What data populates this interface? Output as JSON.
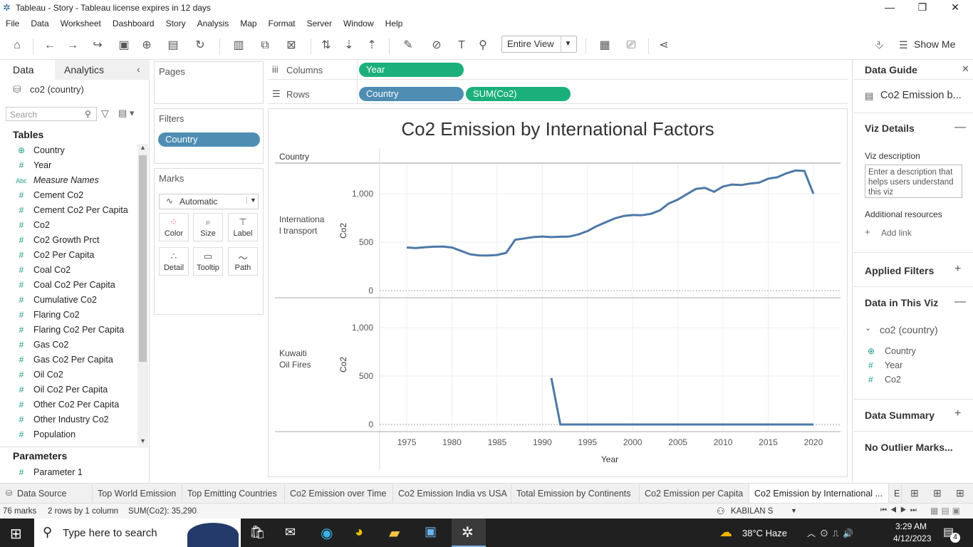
{
  "window": {
    "title": "Tableau - Story - Tableau license expires in 12 days"
  },
  "menu": [
    "File",
    "Data",
    "Worksheet",
    "Dashboard",
    "Story",
    "Analysis",
    "Map",
    "Format",
    "Server",
    "Window",
    "Help"
  ],
  "toolbar": {
    "view_mode": "Entire View",
    "show_me": "Show Me"
  },
  "left": {
    "tab_data": "Data",
    "tab_analytics": "Analytics",
    "datasource": "co2 (country)",
    "search_placeholder": "Search",
    "tables_heading": "Tables",
    "fields": [
      {
        "icon": "globe",
        "label": "Country"
      },
      {
        "icon": "#",
        "label": "Year"
      },
      {
        "icon": "Abc",
        "label": "Measure Names"
      },
      {
        "icon": "#",
        "label": "Cement Co2"
      },
      {
        "icon": "#",
        "label": "Cement Co2 Per Capita"
      },
      {
        "icon": "#",
        "label": "Co2"
      },
      {
        "icon": "#",
        "label": "Co2 Growth Prct"
      },
      {
        "icon": "#",
        "label": "Co2 Per Capita"
      },
      {
        "icon": "#",
        "label": "Coal Co2"
      },
      {
        "icon": "#",
        "label": "Coal Co2 Per Capita"
      },
      {
        "icon": "#",
        "label": "Cumulative Co2"
      },
      {
        "icon": "#",
        "label": "Flaring Co2"
      },
      {
        "icon": "#",
        "label": "Flaring Co2 Per Capita"
      },
      {
        "icon": "#",
        "label": "Gas Co2"
      },
      {
        "icon": "#",
        "label": "Gas Co2 Per Capita"
      },
      {
        "icon": "#",
        "label": "Oil Co2"
      },
      {
        "icon": "#",
        "label": "Oil Co2 Per Capita"
      },
      {
        "icon": "#",
        "label": "Other Co2 Per Capita"
      },
      {
        "icon": "#",
        "label": "Other Industry Co2"
      },
      {
        "icon": "#",
        "label": "Population"
      }
    ],
    "parameters_heading": "Parameters",
    "parameter": "Parameter 1"
  },
  "cards": {
    "pages": "Pages",
    "filters": "Filters",
    "filter_pill": "Country",
    "marks": "Marks",
    "mark_type": "Automatic",
    "mark_buttons": [
      "Color",
      "Size",
      "Label",
      "Detail",
      "Tooltip",
      "Path"
    ]
  },
  "shelves": {
    "columns_label": "Columns",
    "rows_label": "Rows",
    "columns_pill": "Year",
    "rows_pill1": "Country",
    "rows_pill2": "SUM(Co2)"
  },
  "viz": {
    "title": "Co2 Emission by International Factors",
    "row_header": "Country",
    "panel1_label": "Internationa l transport",
    "panel2_label": "Kuwaiti Oil Fires",
    "yaxis": "Co2",
    "xaxis": "Year"
  },
  "chart_data": {
    "type": "line",
    "title": "Co2 Emission by International Factors",
    "xlabel": "Year",
    "ylabel": "Co2",
    "x_ticks": [
      1975,
      1980,
      1985,
      1990,
      1995,
      2000,
      2005,
      2010,
      2015,
      2020
    ],
    "y_ticks": [
      0,
      500,
      1000
    ],
    "ylim": [
      0,
      1250
    ],
    "xlim": [
      1972,
      2023
    ],
    "series": [
      {
        "name": "Internationa l transport",
        "x": [
          1975,
          1976,
          1977,
          1978,
          1979,
          1980,
          1981,
          1982,
          1983,
          1984,
          1985,
          1986,
          1987,
          1988,
          1989,
          1990,
          1991,
          1992,
          1993,
          1994,
          1995,
          1996,
          1997,
          1998,
          1999,
          2000,
          2001,
          2002,
          2003,
          2004,
          2005,
          2006,
          2007,
          2008,
          2009,
          2010,
          2011,
          2012,
          2013,
          2014,
          2015,
          2016,
          2017,
          2018,
          2019,
          2020
        ],
        "y": [
          445,
          440,
          448,
          453,
          455,
          445,
          410,
          375,
          363,
          362,
          368,
          390,
          525,
          538,
          552,
          558,
          552,
          556,
          558,
          580,
          615,
          665,
          705,
          745,
          770,
          780,
          778,
          792,
          828,
          900,
          940,
          995,
          1050,
          1060,
          1020,
          1075,
          1095,
          1090,
          1105,
          1115,
          1155,
          1170,
          1210,
          1240,
          1235,
          1000
        ]
      },
      {
        "name": "Kuwaiti Oil Fires",
        "x": [
          1991,
          1992,
          1993,
          1995,
          2000,
          2005,
          2010,
          2015,
          2020
        ],
        "y": [
          480,
          0,
          0,
          0,
          0,
          0,
          0,
          0,
          0
        ]
      }
    ]
  },
  "right": {
    "title": "Data Guide",
    "viz_name": "Co2 Emission b...",
    "viz_details": "Viz Details",
    "viz_desc_label": "Viz description",
    "viz_desc_placeholder": "Enter a description that helps users understand this viz",
    "additional": "Additional resources",
    "add_link": "Add link",
    "applied_filters": "Applied Filters",
    "data_in_viz": "Data in This Viz",
    "ds": "co2 (country)",
    "fields": [
      "Country",
      "Year",
      "Co2"
    ],
    "data_summary": "Data Summary",
    "no_outlier": "No Outlier Marks..."
  },
  "sheets": [
    "Data Source",
    "Top World Emission",
    "Top Emitting Countries",
    "Co2 Emission over Time",
    "Co2 Emission India vs USA",
    "Total Emission by Continents",
    "Co2 Emission per Capita",
    "Co2 Emission by International ...",
    "E"
  ],
  "status": {
    "marks": "76 marks",
    "dims": "2 rows by 1 column",
    "sum": "SUM(Co2): 35,290",
    "user": "KABILAN S"
  },
  "taskbar": {
    "search": "Type here to search",
    "weather": "38°C  Haze",
    "time": "3:29 AM",
    "date": "4/12/2023",
    "badge": "4"
  }
}
